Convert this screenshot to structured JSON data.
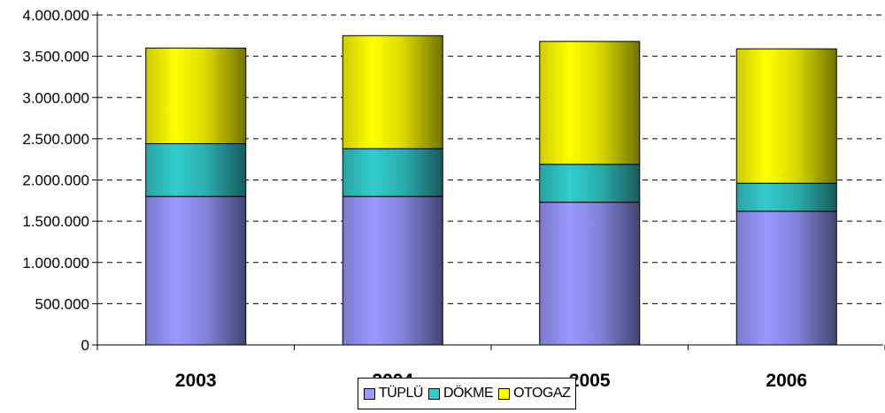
{
  "chart_data": {
    "type": "bar",
    "stacked": true,
    "categories": [
      "2003",
      "2004",
      "2005",
      "2006"
    ],
    "series": [
      {
        "name": "TÜPLÜ",
        "color": "#9999ff",
        "values": [
          1800000,
          1800000,
          1730000,
          1620000
        ]
      },
      {
        "name": "DÖKME",
        "color": "#33cccc",
        "values": [
          640000,
          580000,
          460000,
          340000
        ]
      },
      {
        "name": "OTOGAZ",
        "color": "#ffff00",
        "values": [
          1160000,
          1370000,
          1490000,
          1630000
        ]
      }
    ],
    "y_ticks": [
      "0",
      "500.000",
      "1.000.000",
      "1.500.000",
      "2.000.000",
      "2.500.000",
      "3.000.000",
      "3.500.000",
      "4.000.000"
    ],
    "ylim": [
      0,
      4000000
    ],
    "title": "",
    "xlabel": "",
    "ylabel": "",
    "grid": "dashed-horizontal",
    "legend_position": "bottom"
  }
}
